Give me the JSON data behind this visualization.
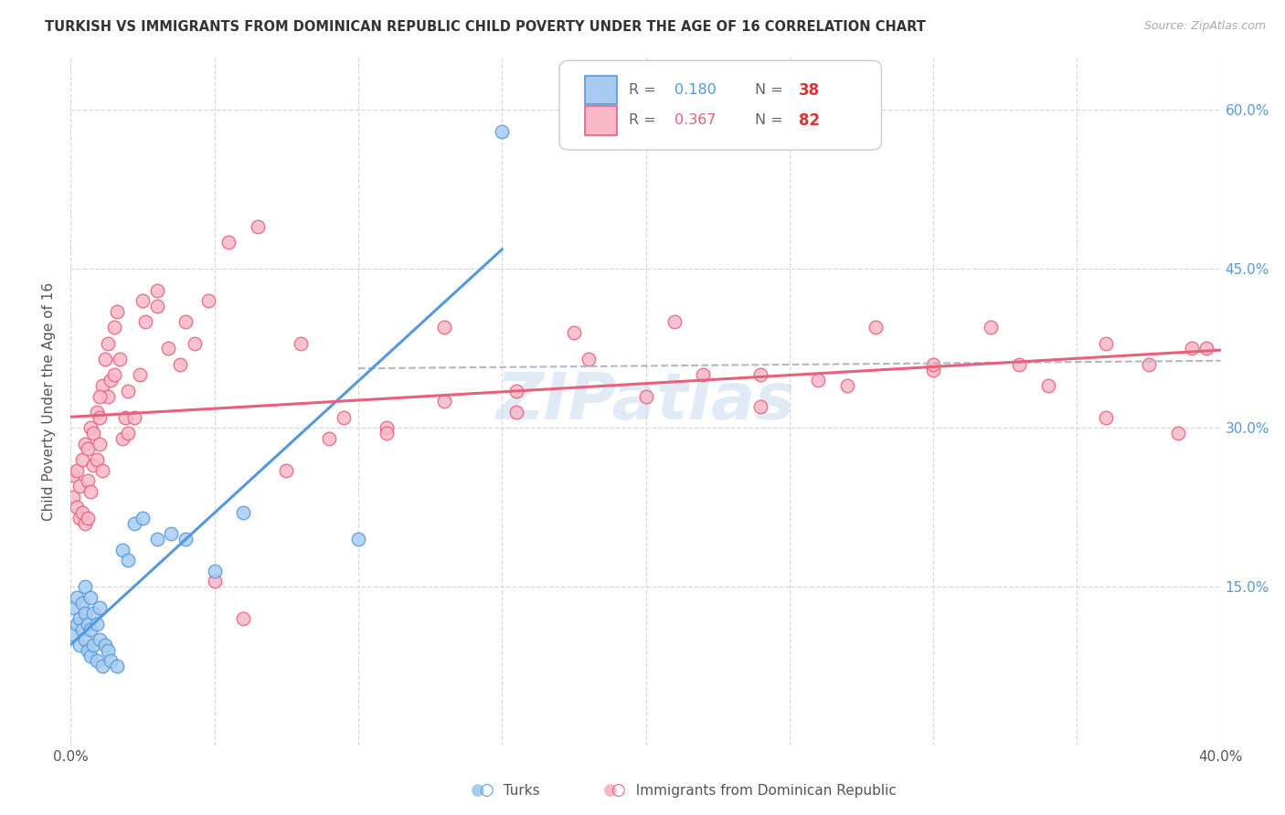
{
  "title": "TURKISH VS IMMIGRANTS FROM DOMINICAN REPUBLIC CHILD POVERTY UNDER THE AGE OF 16 CORRELATION CHART",
  "source": "Source: ZipAtlas.com",
  "ylabel": "Child Poverty Under the Age of 16",
  "xlim": [
    0.0,
    0.4
  ],
  "ylim": [
    0.0,
    0.65
  ],
  "xticks": [
    0.0,
    0.05,
    0.1,
    0.15,
    0.2,
    0.25,
    0.3,
    0.35,
    0.4
  ],
  "ytick_positions": [
    0.15,
    0.3,
    0.45,
    0.6
  ],
  "ytick_labels": [
    "15.0%",
    "30.0%",
    "45.0%",
    "60.0%"
  ],
  "background_color": "#ffffff",
  "grid_color": "#d8d8d8",
  "turks_fill": "#a8ccf0",
  "turks_edge": "#5599dd",
  "dom_fill": "#f8b8c8",
  "dom_edge": "#e8607a",
  "turks_R": 0.18,
  "turks_N": 38,
  "dom_R": 0.367,
  "dom_N": 82,
  "watermark": "ZIPatlas",
  "turks_x": [
    0.001,
    0.001,
    0.002,
    0.002,
    0.003,
    0.003,
    0.004,
    0.004,
    0.005,
    0.005,
    0.005,
    0.006,
    0.006,
    0.007,
    0.007,
    0.007,
    0.008,
    0.008,
    0.009,
    0.009,
    0.01,
    0.01,
    0.011,
    0.012,
    0.013,
    0.014,
    0.016,
    0.018,
    0.02,
    0.022,
    0.025,
    0.03,
    0.035,
    0.04,
    0.05,
    0.06,
    0.1,
    0.15
  ],
  "turks_y": [
    0.105,
    0.13,
    0.115,
    0.14,
    0.095,
    0.12,
    0.11,
    0.135,
    0.1,
    0.125,
    0.15,
    0.09,
    0.115,
    0.085,
    0.11,
    0.14,
    0.095,
    0.125,
    0.08,
    0.115,
    0.1,
    0.13,
    0.075,
    0.095,
    0.09,
    0.08,
    0.075,
    0.185,
    0.175,
    0.21,
    0.215,
    0.195,
    0.2,
    0.195,
    0.165,
    0.22,
    0.195,
    0.58
  ],
  "dom_x": [
    0.001,
    0.001,
    0.002,
    0.002,
    0.003,
    0.003,
    0.004,
    0.004,
    0.005,
    0.005,
    0.006,
    0.006,
    0.006,
    0.007,
    0.007,
    0.008,
    0.008,
    0.009,
    0.009,
    0.01,
    0.01,
    0.011,
    0.011,
    0.012,
    0.013,
    0.013,
    0.014,
    0.015,
    0.016,
    0.017,
    0.018,
    0.019,
    0.02,
    0.022,
    0.024,
    0.026,
    0.03,
    0.034,
    0.038,
    0.043,
    0.048,
    0.055,
    0.065,
    0.08,
    0.095,
    0.11,
    0.13,
    0.155,
    0.175,
    0.2,
    0.22,
    0.24,
    0.26,
    0.28,
    0.3,
    0.32,
    0.34,
    0.36,
    0.375,
    0.39,
    0.01,
    0.015,
    0.02,
    0.025,
    0.03,
    0.04,
    0.05,
    0.06,
    0.075,
    0.09,
    0.11,
    0.13,
    0.155,
    0.18,
    0.21,
    0.24,
    0.27,
    0.3,
    0.33,
    0.36,
    0.385,
    0.395
  ],
  "dom_y": [
    0.235,
    0.255,
    0.225,
    0.26,
    0.215,
    0.245,
    0.22,
    0.27,
    0.21,
    0.285,
    0.25,
    0.215,
    0.28,
    0.24,
    0.3,
    0.265,
    0.295,
    0.27,
    0.315,
    0.285,
    0.31,
    0.26,
    0.34,
    0.365,
    0.33,
    0.38,
    0.345,
    0.395,
    0.41,
    0.365,
    0.29,
    0.31,
    0.335,
    0.31,
    0.35,
    0.4,
    0.43,
    0.375,
    0.36,
    0.38,
    0.42,
    0.475,
    0.49,
    0.38,
    0.31,
    0.3,
    0.395,
    0.335,
    0.39,
    0.33,
    0.35,
    0.32,
    0.345,
    0.395,
    0.355,
    0.395,
    0.34,
    0.38,
    0.36,
    0.375,
    0.33,
    0.35,
    0.295,
    0.42,
    0.415,
    0.4,
    0.155,
    0.12,
    0.26,
    0.29,
    0.295,
    0.325,
    0.315,
    0.365,
    0.4,
    0.35,
    0.34,
    0.36,
    0.36,
    0.31,
    0.295,
    0.375
  ]
}
